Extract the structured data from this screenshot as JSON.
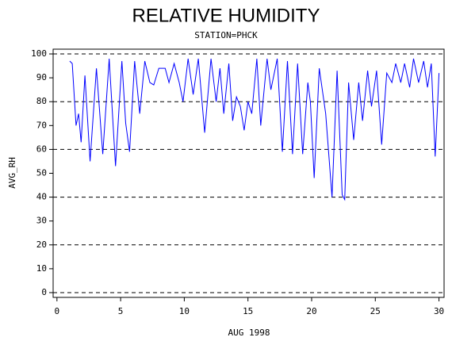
{
  "chart_data": {
    "type": "line",
    "title": "RELATIVE HUMIDITY",
    "subtitle": "STATION=PHCK",
    "x_label": "AUG 1998",
    "y_label": "AVG_RH",
    "xlim": [
      -0.3,
      30.4
    ],
    "ylim": [
      -2,
      102
    ],
    "xticks": [
      0,
      5,
      10,
      15,
      20,
      25,
      30
    ],
    "yticks": [
      0,
      10,
      20,
      30,
      40,
      50,
      60,
      70,
      80,
      90,
      100
    ],
    "reference_lines": [
      0,
      20,
      40,
      60,
      80,
      100
    ],
    "series": [
      {
        "color": "#0000ff",
        "x": [
          1.0,
          1.2,
          1.5,
          1.7,
          1.9,
          2.2,
          2.6,
          3.1,
          3.6,
          4.1,
          4.6,
          5.1,
          5.4,
          5.7,
          6.1,
          6.5,
          6.9,
          7.3,
          7.6,
          8.0,
          8.5,
          8.8,
          9.2,
          9.6,
          9.9,
          10.3,
          10.7,
          11.1,
          11.6,
          12.1,
          12.5,
          12.8,
          13.1,
          13.5,
          13.8,
          14.1,
          14.4,
          14.7,
          15.0,
          15.3,
          15.7,
          16.0,
          16.5,
          16.8,
          17.3,
          17.7,
          18.1,
          18.5,
          18.9,
          19.3,
          19.7,
          19.9,
          20.2,
          20.6,
          21.1,
          21.6,
          22.0,
          22.4,
          22.6,
          22.9,
          23.3,
          23.7,
          24.0,
          24.4,
          24.7,
          25.1,
          25.5,
          25.9,
          26.3,
          26.6,
          27.0,
          27.3,
          27.7,
          28.0,
          28.4,
          28.8,
          29.1,
          29.4,
          29.7,
          29.9,
          30.0
        ],
        "values": [
          97,
          96,
          70,
          75,
          63,
          91,
          55,
          94,
          58,
          98,
          53,
          97,
          71,
          59,
          97,
          75,
          97,
          88,
          87,
          94,
          94,
          88,
          96,
          88,
          80,
          98,
          83,
          98,
          67,
          98,
          80,
          94,
          75,
          96,
          72,
          82,
          78,
          68,
          80,
          75,
          98,
          70,
          98,
          85,
          98,
          59,
          97,
          58,
          96,
          58,
          88,
          80,
          48,
          94,
          75,
          40,
          93,
          41,
          39,
          88,
          64,
          88,
          72,
          93,
          78,
          93,
          62,
          92,
          88,
          96,
          88,
          96,
          86,
          98,
          88,
          97,
          86,
          96,
          57,
          80,
          92
        ]
      }
    ]
  }
}
